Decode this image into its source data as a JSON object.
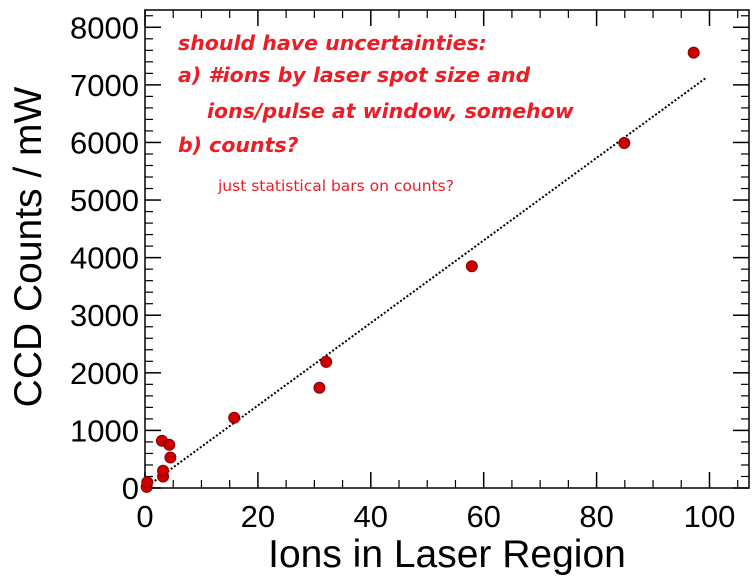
{
  "chart_data": {
    "type": "scatter",
    "title": "",
    "xlabel": "Ions in Laser Region",
    "ylabel": "CCD Counts / mW",
    "xlim": [
      0,
      107
    ],
    "ylim": [
      0,
      8300
    ],
    "xticks": [
      0,
      20,
      40,
      60,
      80,
      100
    ],
    "yticks": [
      0,
      1000,
      2000,
      3000,
      4000,
      5000,
      6000,
      7000,
      8000
    ],
    "xtick_labels": [
      "0",
      "20",
      "40",
      "60",
      "80",
      "100"
    ],
    "ytick_labels": [
      "0",
      "1000",
      "2000",
      "3000",
      "4000",
      "5000",
      "6000",
      "7000",
      "8000"
    ],
    "grid": false,
    "series": [
      {
        "points": [
          {
            "x": 0.3,
            "y": 20
          },
          {
            "x": 0.4,
            "y": 100
          },
          {
            "x": 3.0,
            "y": 820
          },
          {
            "x": 3.2,
            "y": 200
          },
          {
            "x": 3.2,
            "y": 300
          },
          {
            "x": 4.3,
            "y": 750
          },
          {
            "x": 4.5,
            "y": 530
          },
          {
            "x": 15.8,
            "y": 1220
          },
          {
            "x": 30.9,
            "y": 1740
          },
          {
            "x": 32.1,
            "y": 2190
          },
          {
            "x": 57.9,
            "y": 3850
          },
          {
            "x": 84.9,
            "y": 5990
          },
          {
            "x": 97.2,
            "y": 7560
          }
        ],
        "color": "#cc0000"
      }
    ],
    "fit_line": {
      "x": [
        0,
        99.5
      ],
      "y": [
        0,
        7130
      ],
      "style": "dotted",
      "color": "#000000"
    },
    "annotations": {
      "line1": "should have uncertainties:",
      "line2": "a) #ions by laser spot size and",
      "line3": "ions/pulse at window, somehow",
      "line4": "b) counts?",
      "line5": "just statistical bars on counts?",
      "color": "#ee1c24"
    }
  }
}
